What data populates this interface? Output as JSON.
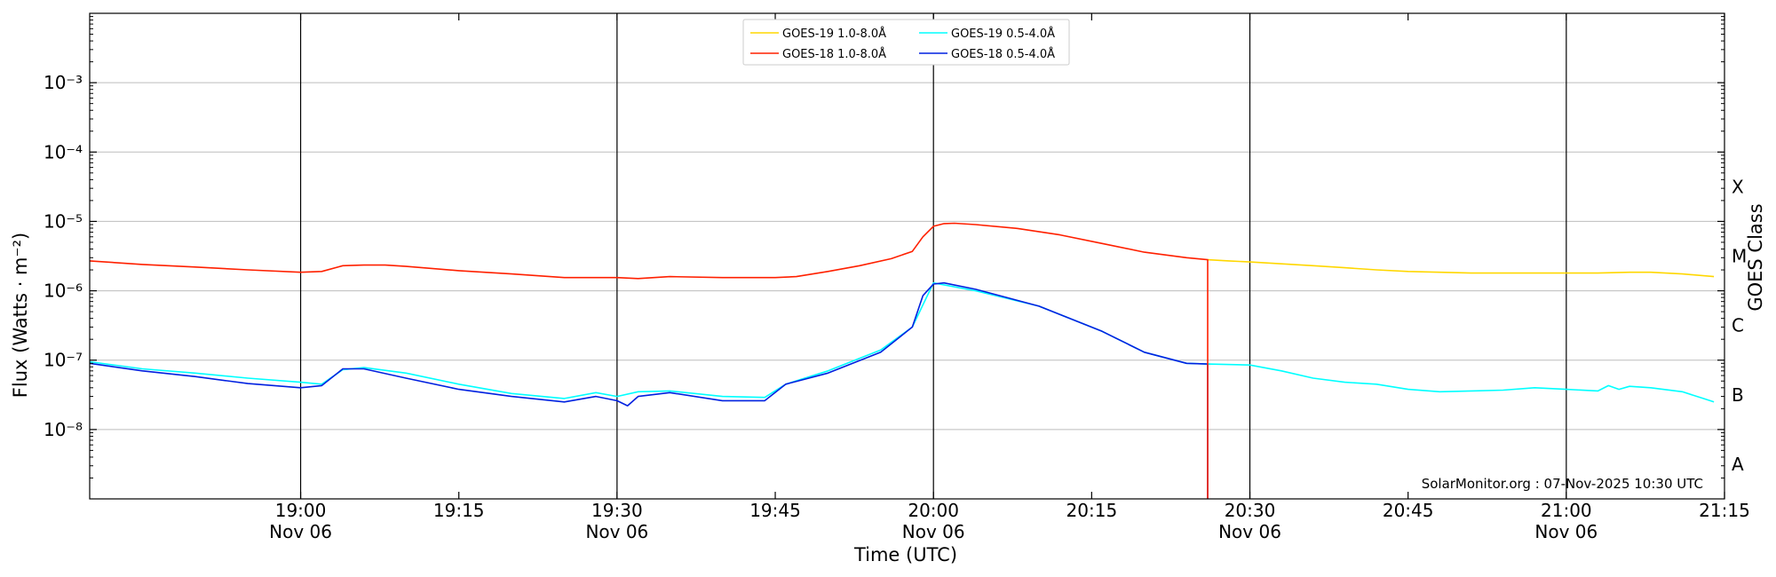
{
  "chart_data": {
    "type": "line",
    "xlabel": "Time (UTC)",
    "ylabel": "Flux (Watts · m⁻²)",
    "ylabel_right": "GOES Class",
    "yscale": "log",
    "ylim": [
      1e-09,
      0.01
    ],
    "xlim": [
      "2025-11-06 18:40",
      "2025-11-06 21:15"
    ],
    "grid": "horizontal at decades",
    "legend_position": "top-center",
    "x_ticks": [
      {
        "time": "19:00",
        "date": "Nov 06"
      },
      {
        "time": "19:15",
        "date": ""
      },
      {
        "time": "19:30",
        "date": "Nov 06"
      },
      {
        "time": "19:45",
        "date": ""
      },
      {
        "time": "20:00",
        "date": "Nov 06"
      },
      {
        "time": "20:15",
        "date": ""
      },
      {
        "time": "20:30",
        "date": "Nov 06"
      },
      {
        "time": "20:45",
        "date": ""
      },
      {
        "time": "21:00",
        "date": "Nov 06"
      },
      {
        "time": "21:15",
        "date": ""
      }
    ],
    "y_ticks": [
      "10⁻⁸",
      "10⁻⁷",
      "10⁻⁶",
      "10⁻⁵",
      "10⁻⁴",
      "10⁻³"
    ],
    "goes_classes": [
      "A",
      "B",
      "C",
      "M",
      "X"
    ],
    "annotation": "SolarMonitor.org : 07-Nov-2025 10:30 UTC",
    "series": [
      {
        "name": "GOES-19 1.0-8.0Å",
        "color": "#FFD700",
        "x": [
          "20:26",
          "20:28",
          "20:30",
          "20:33",
          "20:36",
          "20:39",
          "20:42",
          "20:45",
          "20:48",
          "20:51",
          "20:54",
          "20:57",
          "21:00",
          "21:03",
          "21:06",
          "21:08",
          "21:11",
          "21:14"
        ],
        "values": [
          2.8e-06,
          2.7e-06,
          2.6e-06,
          2.45e-06,
          2.3e-06,
          2.15e-06,
          2e-06,
          1.9e-06,
          1.85e-06,
          1.8e-06,
          1.8e-06,
          1.8e-06,
          1.8e-06,
          1.8e-06,
          1.85e-06,
          1.85e-06,
          1.75e-06,
          1.6e-06
        ]
      },
      {
        "name": "GOES-18 1.0-8.0Å",
        "color": "#FF2000",
        "x": [
          "18:40",
          "18:45",
          "18:50",
          "18:55",
          "19:00",
          "19:02",
          "19:04",
          "19:06",
          "19:08",
          "19:10",
          "19:15",
          "19:20",
          "19:25",
          "19:30",
          "19:32",
          "19:35",
          "19:40",
          "19:45",
          "19:47",
          "19:50",
          "19:53",
          "19:56",
          "19:58",
          "19:59",
          "20:00",
          "20:01",
          "20:02",
          "20:04",
          "20:08",
          "20:12",
          "20:16",
          "20:20",
          "20:24",
          "20:26",
          "20:26"
        ],
        "values": [
          2.7e-06,
          2.4e-06,
          2.2e-06,
          2e-06,
          1.85e-06,
          1.9e-06,
          2.3e-06,
          2.35e-06,
          2.35e-06,
          2.25e-06,
          1.95e-06,
          1.75e-06,
          1.55e-06,
          1.55e-06,
          1.5e-06,
          1.6e-06,
          1.55e-06,
          1.55e-06,
          1.6e-06,
          1.9e-06,
          2.3e-06,
          2.9e-06,
          3.7e-06,
          6e-06,
          8.5e-06,
          9.3e-06,
          9.4e-06,
          9e-06,
          7.9e-06,
          6.4e-06,
          4.8e-06,
          3.6e-06,
          3e-06,
          2.8e-06,
          1e-09
        ]
      },
      {
        "name": "GOES-19 0.5-4.0Å",
        "color": "#00FFFF",
        "x": [
          "18:40",
          "18:45",
          "18:50",
          "18:55",
          "19:00",
          "19:02",
          "19:04",
          "19:06",
          "19:10",
          "19:15",
          "19:20",
          "19:25",
          "19:28",
          "19:30",
          "19:32",
          "19:35",
          "19:40",
          "19:44",
          "19:46",
          "19:50",
          "19:55",
          "19:58",
          "20:00",
          "20:04",
          "20:10",
          "20:16",
          "20:20",
          "20:24",
          "20:26",
          "20:30",
          "20:33",
          "20:36",
          "20:39",
          "20:42",
          "20:45",
          "20:48",
          "20:51",
          "20:54",
          "20:57",
          "21:00",
          "21:03",
          "21:04",
          "21:05",
          "21:06",
          "21:08",
          "21:11",
          "21:13",
          "21:14"
        ],
        "values": [
          9.5e-08,
          7.5e-08,
          6.5e-08,
          5.5e-08,
          4.8e-08,
          4.5e-08,
          7.3e-08,
          7.8e-08,
          6.5e-08,
          4.5e-08,
          3.3e-08,
          2.8e-08,
          3.4e-08,
          3e-08,
          3.5e-08,
          3.6e-08,
          3e-08,
          2.9e-08,
          4.5e-08,
          7e-08,
          1.4e-07,
          3e-07,
          1.3e-06,
          1e-06,
          6e-07,
          2.6e-07,
          1.3e-07,
          9e-08,
          8.8e-08,
          8.5e-08,
          7e-08,
          5.5e-08,
          4.8e-08,
          4.5e-08,
          3.8e-08,
          3.5e-08,
          3.6e-08,
          3.7e-08,
          4e-08,
          3.8e-08,
          3.6e-08,
          4.3e-08,
          3.8e-08,
          4.2e-08,
          4e-08,
          3.5e-08,
          2.8e-08,
          2.5e-08
        ]
      },
      {
        "name": "GOES-18 0.5-4.0Å",
        "color": "#0020E0",
        "x": [
          "18:40",
          "18:45",
          "18:50",
          "18:55",
          "19:00",
          "19:02",
          "19:04",
          "19:06",
          "19:10",
          "19:15",
          "19:20",
          "19:25",
          "19:28",
          "19:30",
          "19:31",
          "19:32",
          "19:35",
          "19:40",
          "19:44",
          "19:46",
          "19:50",
          "19:55",
          "19:58",
          "19:59",
          "20:00",
          "20:01",
          "20:04",
          "20:10",
          "20:16",
          "20:20",
          "20:24",
          "20:26",
          "20:26"
        ],
        "values": [
          9e-08,
          7e-08,
          5.8e-08,
          4.6e-08,
          4e-08,
          4.3e-08,
          7.5e-08,
          7.5e-08,
          5.5e-08,
          3.8e-08,
          3e-08,
          2.5e-08,
          3e-08,
          2.6e-08,
          2.2e-08,
          3e-08,
          3.4e-08,
          2.6e-08,
          2.6e-08,
          4.5e-08,
          6.5e-08,
          1.3e-07,
          3e-07,
          8.5e-07,
          1.25e-06,
          1.3e-06,
          1.05e-06,
          6e-07,
          2.6e-07,
          1.3e-07,
          9e-08,
          8.8e-08,
          1e-09
        ]
      }
    ]
  }
}
